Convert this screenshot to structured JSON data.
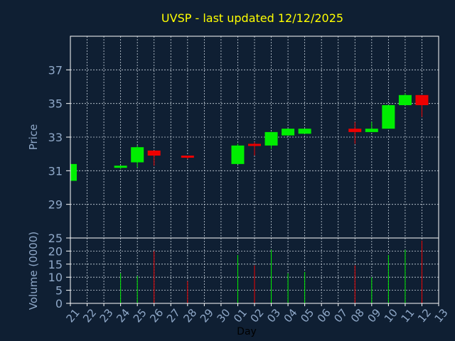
{
  "chart_data": {
    "type": "candlestick",
    "title": "UVSP - last updated 12/12/2025",
    "ylabel": "Price",
    "volume_label": "Volume (0000)",
    "xlabel": "Day",
    "ylim": [
      27,
      39
    ],
    "yticks": [
      29,
      31,
      33,
      35,
      37
    ],
    "volume_ylim": [
      0,
      25
    ],
    "volume_yticks": [
      0,
      5,
      10,
      15,
      20,
      25
    ],
    "grid": true,
    "colors": {
      "background": "#0f1f33",
      "up": "#00ee00",
      "down": "#ee0000",
      "title": "#ffff00",
      "axis_text": "#8fa8c8",
      "frame": "#ffffff"
    },
    "days": [
      "21",
      "22",
      "23",
      "24",
      "25",
      "26",
      "27",
      "28",
      "29",
      "30",
      "01",
      "02",
      "03",
      "04",
      "05",
      "06",
      "07",
      "08",
      "09",
      "10",
      "11",
      "12",
      "13"
    ],
    "candles": [
      {
        "day": 0,
        "open": 30.4,
        "high": 31.4,
        "low": 30.4,
        "close": 31.4,
        "volume": 0
      },
      {
        "day": 3,
        "open": 31.2,
        "high": 31.3,
        "low": 31.1,
        "close": 31.3,
        "volume": 11.5
      },
      {
        "day": 4,
        "open": 31.5,
        "high": 32.5,
        "low": 31.2,
        "close": 32.4,
        "volume": 10.5
      },
      {
        "day": 5,
        "open": 32.2,
        "high": 32.2,
        "low": 31.3,
        "close": 31.9,
        "volume": 20
      },
      {
        "day": 7,
        "open": 31.9,
        "high": 31.9,
        "low": 31.7,
        "close": 31.8,
        "volume": 8.5
      },
      {
        "day": 10,
        "open": 31.4,
        "high": 32.6,
        "low": 31.4,
        "close": 32.5,
        "volume": 18.5
      },
      {
        "day": 11,
        "open": 32.6,
        "high": 32.7,
        "low": 31.9,
        "close": 32.5,
        "volume": 14.5
      },
      {
        "day": 12,
        "open": 32.5,
        "high": 33.3,
        "low": 32.3,
        "close": 33.3,
        "volume": 20.5
      },
      {
        "day": 13,
        "open": 33.1,
        "high": 33.5,
        "low": 33.1,
        "close": 33.5,
        "volume": 11.5
      },
      {
        "day": 14,
        "open": 33.2,
        "high": 33.5,
        "low": 33.2,
        "close": 33.5,
        "volume": 12
      },
      {
        "day": 17,
        "open": 33.5,
        "high": 33.9,
        "low": 32.6,
        "close": 33.3,
        "volume": 14.5
      },
      {
        "day": 18,
        "open": 33.3,
        "high": 33.9,
        "low": 33.3,
        "close": 33.5,
        "volume": 10
      },
      {
        "day": 19,
        "open": 33.5,
        "high": 34.9,
        "low": 33.5,
        "close": 34.9,
        "volume": 18.5
      },
      {
        "day": 20,
        "open": 34.9,
        "high": 35.6,
        "low": 34.9,
        "close": 35.5,
        "volume": 20.5
      },
      {
        "day": 21,
        "open": 35.5,
        "high": 35.5,
        "low": 34.2,
        "close": 34.9,
        "volume": 24
      }
    ]
  }
}
